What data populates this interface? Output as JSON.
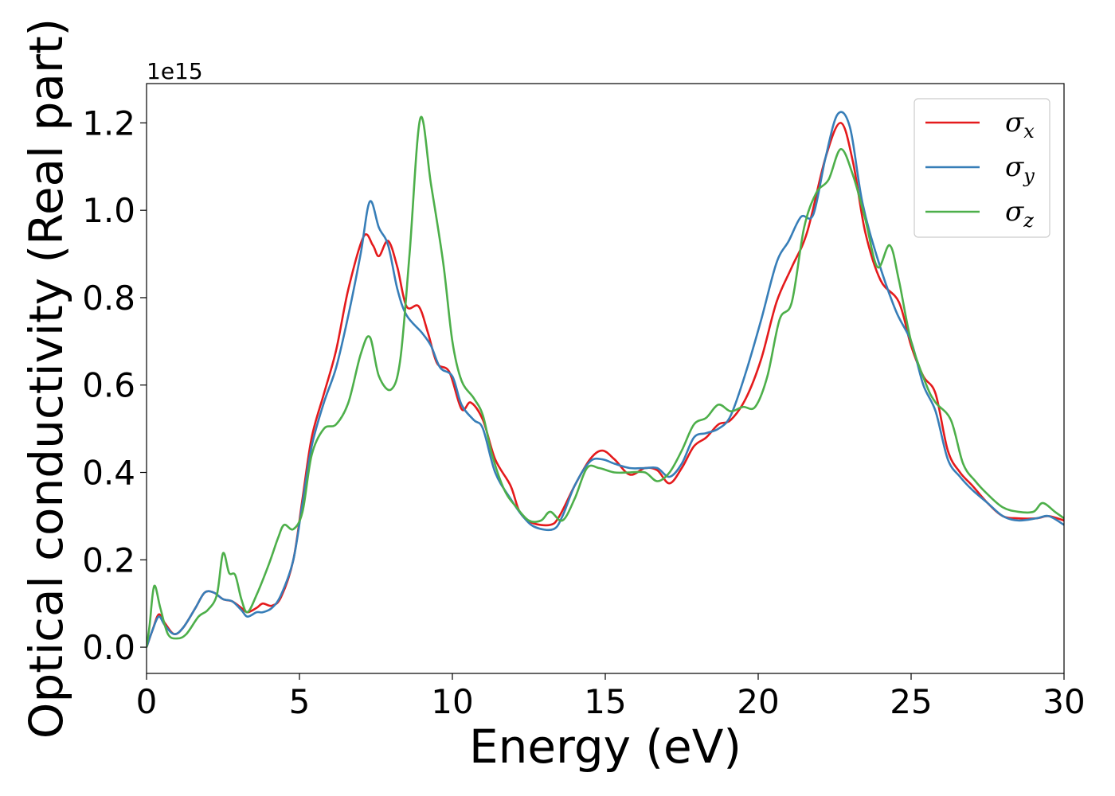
{
  "chart_data": {
    "type": "line",
    "title": "",
    "xlabel": "Energy (eV)",
    "ylabel": "Optical conductivity (Real part)",
    "y_offset_label": "1e15",
    "xlim": [
      0,
      30
    ],
    "ylim": [
      -0.06,
      1.29
    ],
    "x_ticks": [
      "0",
      "5",
      "10",
      "15",
      "20",
      "25",
      "30"
    ],
    "y_ticks": [
      "0.0",
      "0.2",
      "0.4",
      "0.6",
      "0.8",
      "1.0",
      "1.2"
    ],
    "grid": false,
    "legend_position": "top-right",
    "series": [
      {
        "name": "σx",
        "symbol": "σ",
        "subscript": "x",
        "color": "#e41a1c",
        "points": [
          [
            0,
            0
          ],
          [
            0.2,
            0.04
          ],
          [
            0.4,
            0.075
          ],
          [
            0.6,
            0.055
          ],
          [
            0.9,
            0.03
          ],
          [
            1.2,
            0.045
          ],
          [
            1.6,
            0.09
          ],
          [
            1.9,
            0.125
          ],
          [
            2.2,
            0.125
          ],
          [
            2.5,
            0.11
          ],
          [
            2.8,
            0.105
          ],
          [
            3.1,
            0.09
          ],
          [
            3.3,
            0.08
          ],
          [
            3.6,
            0.09
          ],
          [
            3.8,
            0.1
          ],
          [
            4.1,
            0.095
          ],
          [
            4.4,
            0.115
          ],
          [
            4.8,
            0.2
          ],
          [
            5.1,
            0.34
          ],
          [
            5.4,
            0.48
          ],
          [
            5.8,
            0.58
          ],
          [
            6.2,
            0.68
          ],
          [
            6.6,
            0.82
          ],
          [
            7.1,
            0.94
          ],
          [
            7.4,
            0.92
          ],
          [
            7.6,
            0.895
          ],
          [
            7.9,
            0.93
          ],
          [
            8.2,
            0.87
          ],
          [
            8.5,
            0.78
          ],
          [
            8.9,
            0.78
          ],
          [
            9.2,
            0.72
          ],
          [
            9.5,
            0.65
          ],
          [
            9.9,
            0.63
          ],
          [
            10.3,
            0.545
          ],
          [
            10.6,
            0.56
          ],
          [
            11.0,
            0.52
          ],
          [
            11.4,
            0.43
          ],
          [
            11.9,
            0.37
          ],
          [
            12.2,
            0.31
          ],
          [
            12.6,
            0.285
          ],
          [
            13.2,
            0.28
          ],
          [
            13.5,
            0.3
          ],
          [
            14.0,
            0.37
          ],
          [
            14.5,
            0.43
          ],
          [
            14.9,
            0.45
          ],
          [
            15.3,
            0.43
          ],
          [
            15.8,
            0.395
          ],
          [
            16.3,
            0.41
          ],
          [
            16.7,
            0.405
          ],
          [
            17.1,
            0.375
          ],
          [
            17.5,
            0.41
          ],
          [
            17.9,
            0.46
          ],
          [
            18.3,
            0.48
          ],
          [
            18.7,
            0.51
          ],
          [
            19.1,
            0.52
          ],
          [
            19.6,
            0.57
          ],
          [
            20.1,
            0.66
          ],
          [
            20.6,
            0.79
          ],
          [
            21.1,
            0.87
          ],
          [
            21.6,
            0.95
          ],
          [
            22.2,
            1.12
          ],
          [
            22.7,
            1.2
          ],
          [
            23.1,
            1.11
          ],
          [
            23.5,
            0.95
          ],
          [
            24.0,
            0.84
          ],
          [
            24.6,
            0.79
          ],
          [
            25.0,
            0.69
          ],
          [
            25.4,
            0.62
          ],
          [
            25.8,
            0.58
          ],
          [
            26.2,
            0.45
          ],
          [
            26.6,
            0.4
          ],
          [
            27.0,
            0.37
          ],
          [
            27.5,
            0.33
          ],
          [
            28.0,
            0.3
          ],
          [
            28.5,
            0.295
          ],
          [
            29.1,
            0.295
          ],
          [
            29.5,
            0.3
          ],
          [
            30.0,
            0.29
          ]
        ]
      },
      {
        "name": "σy",
        "symbol": "σ",
        "subscript": "y",
        "color": "#377eb8",
        "points": [
          [
            0,
            0
          ],
          [
            0.2,
            0.04
          ],
          [
            0.4,
            0.07
          ],
          [
            0.6,
            0.05
          ],
          [
            0.9,
            0.03
          ],
          [
            1.2,
            0.045
          ],
          [
            1.6,
            0.09
          ],
          [
            1.9,
            0.125
          ],
          [
            2.2,
            0.125
          ],
          [
            2.5,
            0.11
          ],
          [
            2.8,
            0.105
          ],
          [
            3.1,
            0.085
          ],
          [
            3.3,
            0.07
          ],
          [
            3.6,
            0.08
          ],
          [
            3.8,
            0.08
          ],
          [
            4.1,
            0.09
          ],
          [
            4.4,
            0.12
          ],
          [
            4.8,
            0.2
          ],
          [
            5.1,
            0.33
          ],
          [
            5.4,
            0.46
          ],
          [
            5.8,
            0.56
          ],
          [
            6.2,
            0.64
          ],
          [
            6.6,
            0.76
          ],
          [
            7.0,
            0.9
          ],
          [
            7.3,
            1.02
          ],
          [
            7.6,
            0.96
          ],
          [
            7.9,
            0.92
          ],
          [
            8.2,
            0.82
          ],
          [
            8.5,
            0.76
          ],
          [
            9.0,
            0.72
          ],
          [
            9.3,
            0.69
          ],
          [
            9.6,
            0.64
          ],
          [
            10.0,
            0.62
          ],
          [
            10.3,
            0.555
          ],
          [
            10.7,
            0.52
          ],
          [
            11.0,
            0.5
          ],
          [
            11.4,
            0.4
          ],
          [
            11.9,
            0.34
          ],
          [
            12.3,
            0.3
          ],
          [
            12.7,
            0.275
          ],
          [
            13.3,
            0.27
          ],
          [
            13.6,
            0.3
          ],
          [
            14.0,
            0.37
          ],
          [
            14.5,
            0.425
          ],
          [
            14.9,
            0.43
          ],
          [
            15.3,
            0.42
          ],
          [
            15.8,
            0.41
          ],
          [
            16.3,
            0.41
          ],
          [
            16.7,
            0.41
          ],
          [
            17.1,
            0.39
          ],
          [
            17.5,
            0.42
          ],
          [
            17.9,
            0.48
          ],
          [
            18.3,
            0.49
          ],
          [
            18.7,
            0.5
          ],
          [
            19.1,
            0.53
          ],
          [
            19.6,
            0.63
          ],
          [
            20.1,
            0.75
          ],
          [
            20.6,
            0.88
          ],
          [
            21.0,
            0.93
          ],
          [
            21.4,
            0.985
          ],
          [
            21.8,
            0.99
          ],
          [
            22.2,
            1.12
          ],
          [
            22.6,
            1.22
          ],
          [
            23.0,
            1.19
          ],
          [
            23.4,
            1.02
          ],
          [
            23.9,
            0.89
          ],
          [
            24.5,
            0.77
          ],
          [
            25.0,
            0.7
          ],
          [
            25.4,
            0.6
          ],
          [
            25.8,
            0.54
          ],
          [
            26.2,
            0.43
          ],
          [
            26.6,
            0.39
          ],
          [
            27.0,
            0.36
          ],
          [
            27.5,
            0.33
          ],
          [
            28.0,
            0.3
          ],
          [
            28.5,
            0.29
          ],
          [
            29.1,
            0.295
          ],
          [
            29.5,
            0.3
          ],
          [
            30.0,
            0.28
          ]
        ]
      },
      {
        "name": "σz",
        "symbol": "σ",
        "subscript": "z",
        "color": "#4daf4a",
        "points": [
          [
            0,
            0
          ],
          [
            0.1,
            0.05
          ],
          [
            0.25,
            0.14
          ],
          [
            0.45,
            0.09
          ],
          [
            0.7,
            0.03
          ],
          [
            1.0,
            0.02
          ],
          [
            1.3,
            0.03
          ],
          [
            1.7,
            0.07
          ],
          [
            2.0,
            0.085
          ],
          [
            2.3,
            0.12
          ],
          [
            2.5,
            0.215
          ],
          [
            2.7,
            0.17
          ],
          [
            2.9,
            0.165
          ],
          [
            3.1,
            0.11
          ],
          [
            3.3,
            0.08
          ],
          [
            3.6,
            0.12
          ],
          [
            4.0,
            0.19
          ],
          [
            4.3,
            0.25
          ],
          [
            4.5,
            0.28
          ],
          [
            4.8,
            0.27
          ],
          [
            5.1,
            0.31
          ],
          [
            5.4,
            0.44
          ],
          [
            5.8,
            0.5
          ],
          [
            6.2,
            0.51
          ],
          [
            6.6,
            0.56
          ],
          [
            7.0,
            0.67
          ],
          [
            7.3,
            0.71
          ],
          [
            7.6,
            0.62
          ],
          [
            8.0,
            0.59
          ],
          [
            8.3,
            0.66
          ],
          [
            8.6,
            0.9
          ],
          [
            8.95,
            1.21
          ],
          [
            9.3,
            1.06
          ],
          [
            9.7,
            0.88
          ],
          [
            10.0,
            0.7
          ],
          [
            10.3,
            0.61
          ],
          [
            10.7,
            0.57
          ],
          [
            11.0,
            0.53
          ],
          [
            11.3,
            0.44
          ],
          [
            11.7,
            0.36
          ],
          [
            12.1,
            0.32
          ],
          [
            12.5,
            0.29
          ],
          [
            12.9,
            0.29
          ],
          [
            13.2,
            0.31
          ],
          [
            13.6,
            0.29
          ],
          [
            14.0,
            0.34
          ],
          [
            14.4,
            0.41
          ],
          [
            14.8,
            0.41
          ],
          [
            15.3,
            0.4
          ],
          [
            15.8,
            0.4
          ],
          [
            16.3,
            0.4
          ],
          [
            16.7,
            0.38
          ],
          [
            17.1,
            0.4
          ],
          [
            17.5,
            0.45
          ],
          [
            17.9,
            0.51
          ],
          [
            18.3,
            0.525
          ],
          [
            18.7,
            0.555
          ],
          [
            19.1,
            0.54
          ],
          [
            19.5,
            0.55
          ],
          [
            19.9,
            0.55
          ],
          [
            20.3,
            0.62
          ],
          [
            20.7,
            0.75
          ],
          [
            21.1,
            0.79
          ],
          [
            21.5,
            0.96
          ],
          [
            21.9,
            1.04
          ],
          [
            22.3,
            1.07
          ],
          [
            22.7,
            1.14
          ],
          [
            23.1,
            1.08
          ],
          [
            23.5,
            0.98
          ],
          [
            23.9,
            0.87
          ],
          [
            24.3,
            0.92
          ],
          [
            24.6,
            0.84
          ],
          [
            25.0,
            0.7
          ],
          [
            25.5,
            0.6
          ],
          [
            25.8,
            0.56
          ],
          [
            26.3,
            0.52
          ],
          [
            26.7,
            0.42
          ],
          [
            27.1,
            0.38
          ],
          [
            27.5,
            0.35
          ],
          [
            28.0,
            0.32
          ],
          [
            28.5,
            0.31
          ],
          [
            29.0,
            0.31
          ],
          [
            29.3,
            0.33
          ],
          [
            29.7,
            0.31
          ],
          [
            30.0,
            0.295
          ]
        ]
      }
    ]
  }
}
